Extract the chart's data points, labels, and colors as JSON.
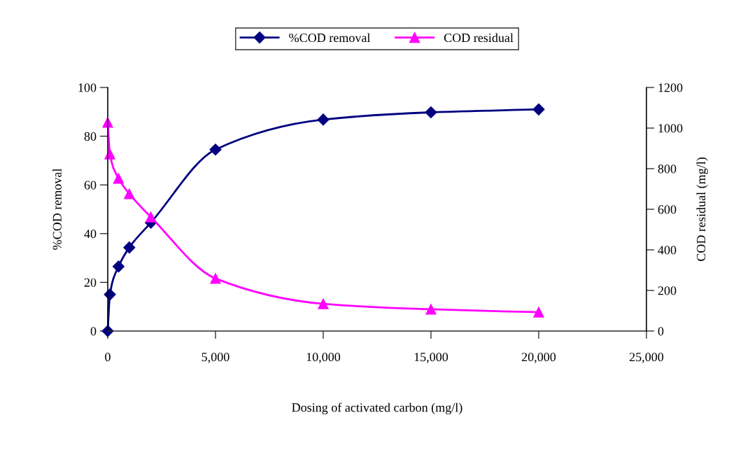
{
  "chart_data": {
    "type": "line",
    "xlabel": "Dosing of activated carbon (mg/l)",
    "ylabel": "%COD removal",
    "y2label": "COD residual (mg/l)",
    "xlim": [
      0,
      25000
    ],
    "xticks": [
      0,
      {
        "value": 5000,
        "label": "5,000"
      },
      {
        "value": 10000,
        "label": "10,000"
      },
      {
        "value": 15000,
        "label": "15,000"
      },
      {
        "value": 20000,
        "label": "20,000"
      },
      {
        "value": 25000,
        "label": "25,000"
      }
    ],
    "ylim": [
      0,
      100
    ],
    "yticks": [
      0,
      20,
      40,
      60,
      80,
      100
    ],
    "y2lim": [
      0,
      1200
    ],
    "y2ticks": [
      0,
      200,
      400,
      600,
      800,
      1000,
      1200
    ],
    "legend": "top",
    "grid": false,
    "series": [
      {
        "name": "%COD removal",
        "color": "#000080",
        "marker": "diamond",
        "x": [
          0,
          100,
          500,
          1000,
          2000,
          5000,
          10000,
          15000,
          20000
        ],
        "values": [
          0,
          15,
          26.5,
          34.3,
          44.5,
          74.5,
          86.8,
          89.8,
          91
        ]
      },
      {
        "name": "COD residual",
        "color": "#ff00ff",
        "marker": "triangle",
        "axis": "y2",
        "x": [
          0,
          100,
          500,
          1000,
          2000,
          5000,
          10000,
          15000,
          20000
        ],
        "values": [
          1028,
          872,
          752,
          676,
          562,
          259,
          134,
          107,
          93
        ]
      }
    ]
  }
}
